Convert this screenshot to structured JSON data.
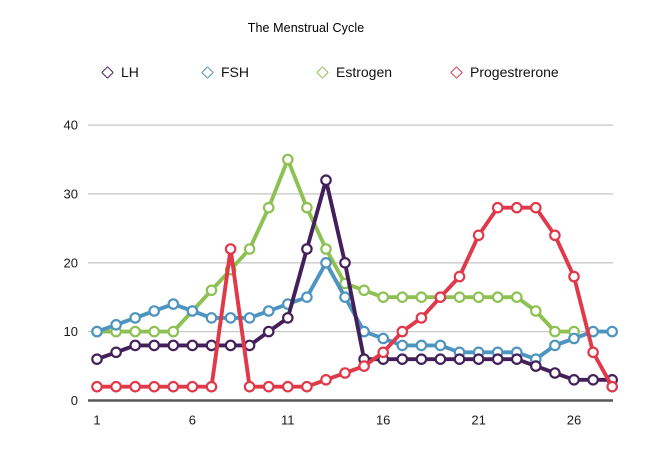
{
  "title": "The Menstrual Cycle",
  "chart_data": {
    "type": "line",
    "title": "The Menstrual Cycle",
    "xlabel": "",
    "ylabel": "",
    "x": [
      1,
      2,
      3,
      4,
      5,
      6,
      7,
      8,
      9,
      10,
      11,
      12,
      13,
      14,
      15,
      16,
      17,
      18,
      19,
      20,
      21,
      22,
      23,
      24,
      25,
      26,
      27,
      28
    ],
    "xticks": [
      1,
      6,
      11,
      16,
      21,
      26
    ],
    "yticks": [
      0,
      10,
      20,
      30,
      40
    ],
    "ylim": [
      0,
      42
    ],
    "grid": true,
    "legend_position": "top",
    "marker": "circle-white-fill",
    "series": [
      {
        "name": "LH",
        "color": "#44205a",
        "values": [
          6,
          7,
          8,
          8,
          8,
          8,
          8,
          8,
          8,
          10,
          12,
          22,
          32,
          20,
          6,
          6,
          6,
          6,
          6,
          6,
          6,
          6,
          6,
          5,
          4,
          3,
          3,
          3
        ]
      },
      {
        "name": "FSH",
        "color": "#4d95bf",
        "values": [
          10,
          11,
          12,
          13,
          14,
          13,
          12,
          12,
          12,
          13,
          14,
          15,
          20,
          15,
          10,
          9,
          8,
          8,
          8,
          7,
          7,
          7,
          7,
          6,
          8,
          9,
          10,
          10
        ]
      },
      {
        "name": "Estrogen",
        "color": "#8ec153",
        "values": [
          10,
          10,
          10,
          10,
          10,
          13,
          16,
          19,
          22,
          28,
          35,
          28,
          22,
          17,
          16,
          15,
          15,
          15,
          15,
          15,
          15,
          15,
          15,
          13,
          10,
          10,
          null,
          null
        ]
      },
      {
        "name": "Progestrerone",
        "color": "#e0394a",
        "values": [
          2,
          2,
          2,
          2,
          2,
          2,
          2,
          22,
          2,
          2,
          2,
          2,
          3,
          4,
          5,
          7,
          10,
          12,
          15,
          18,
          24,
          28,
          28,
          28,
          24,
          18,
          7,
          2
        ]
      }
    ]
  },
  "axis": {
    "x_tick_labels": [
      "1",
      "6",
      "11",
      "16",
      "21",
      "26"
    ],
    "y_tick_labels": [
      "0",
      "10",
      "20",
      "30",
      "40"
    ]
  }
}
